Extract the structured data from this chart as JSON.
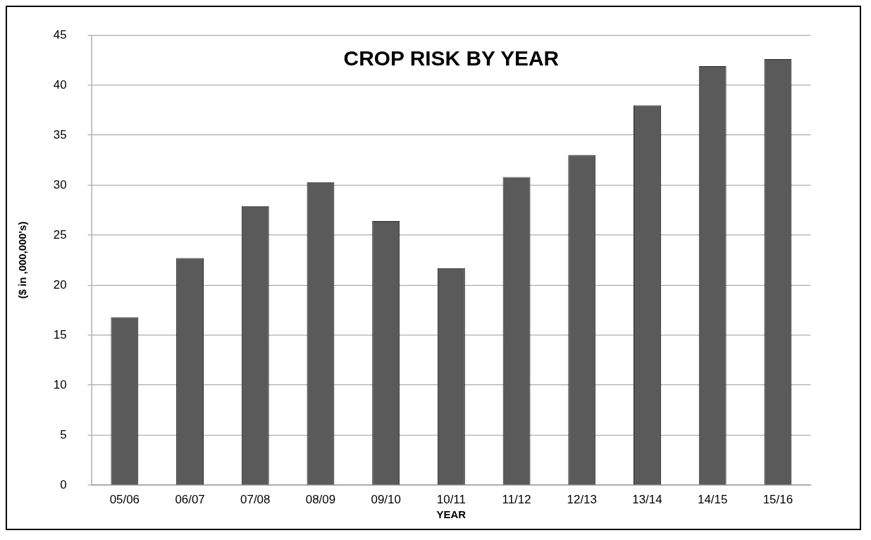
{
  "chart_data": {
    "type": "bar",
    "title": "CROP RISK BY YEAR",
    "xlabel": "YEAR",
    "ylabel": "($ in ,000,000's)",
    "categories": [
      "05/06",
      "06/07",
      "07/08",
      "08/09",
      "09/10",
      "10/11",
      "11/12",
      "12/13",
      "13/14",
      "14/15",
      "15/16"
    ],
    "values": [
      16.8,
      22.7,
      27.9,
      30.3,
      26.4,
      21.7,
      30.8,
      33.0,
      38.0,
      41.9,
      42.6
    ],
    "color": "#5a5a5a",
    "ylim": [
      0,
      45
    ],
    "yticks": [
      0,
      5,
      10,
      15,
      20,
      25,
      30,
      35,
      40,
      45
    ],
    "grid": "y",
    "legend": false
  }
}
